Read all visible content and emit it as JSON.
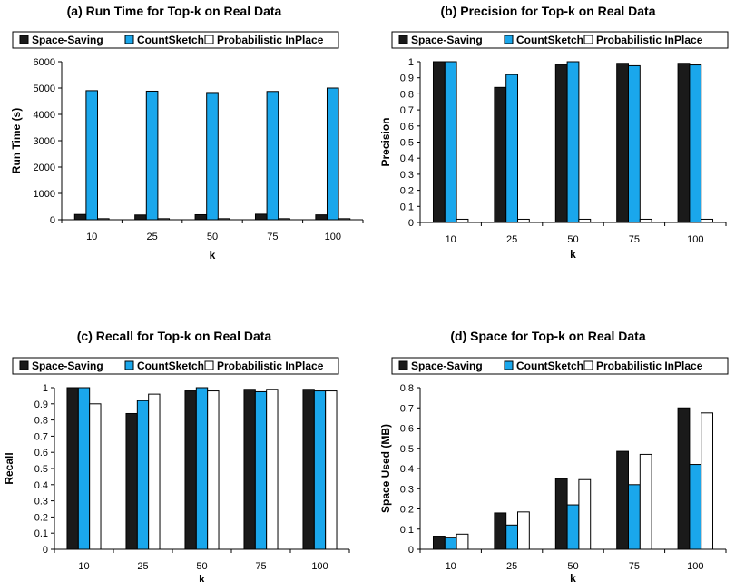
{
  "legend_labels": [
    "Space-Saving",
    "CountSketch",
    "Probabilistic InPlace"
  ],
  "colors": {
    "Space-Saving": "#1a1a1a",
    "CountSketch": "#1aa7ec",
    "Probabilistic InPlace": "#ffffff",
    "axis": "#000000"
  },
  "chart_data": [
    {
      "type": "bar",
      "title": "(a) Run Time for Top-k on Real Data",
      "xlabel": "k",
      "ylabel": "Run Time (s)",
      "categories": [
        "10",
        "25",
        "50",
        "75",
        "100"
      ],
      "ylim": [
        0,
        6000
      ],
      "yticks": [
        "0",
        "1000",
        "2000",
        "3000",
        "4000",
        "5000",
        "6000"
      ],
      "yticks_values": [
        0,
        1000,
        2000,
        3000,
        4000,
        5000,
        6000
      ],
      "legend": "top",
      "grid": false,
      "series": [
        {
          "name": "Space-Saving",
          "values": [
            200,
            180,
            190,
            210,
            185
          ]
        },
        {
          "name": "CountSketch",
          "values": [
            4900,
            4880,
            4830,
            4870,
            5000
          ]
        },
        {
          "name": "Probabilistic InPlace",
          "values": [
            40,
            40,
            40,
            40,
            40
          ]
        }
      ]
    },
    {
      "type": "bar",
      "title": "(b) Precision for Top-k on Real Data",
      "xlabel": "k",
      "ylabel": "Precision",
      "categories": [
        "10",
        "25",
        "50",
        "75",
        "100"
      ],
      "ylim": [
        0,
        1
      ],
      "yticks": [
        "0",
        "0.1",
        "0.2",
        "0.3",
        "0.4",
        "0.5",
        "0.6",
        "0.7",
        "0.8",
        "0.9",
        "1"
      ],
      "yticks_values": [
        0,
        0.1,
        0.2,
        0.3,
        0.4,
        0.5,
        0.6,
        0.7,
        0.8,
        0.9,
        1
      ],
      "legend": "top",
      "grid": false,
      "series": [
        {
          "name": "Space-Saving",
          "values": [
            1.0,
            0.84,
            0.98,
            0.99,
            0.99
          ]
        },
        {
          "name": "CountSketch",
          "values": [
            1.0,
            0.92,
            1.0,
            0.975,
            0.98
          ]
        },
        {
          "name": "Probabilistic InPlace",
          "values": [
            0.02,
            0.02,
            0.02,
            0.02,
            0.02
          ]
        }
      ]
    },
    {
      "type": "bar",
      "title": "(c) Recall for Top-k on Real Data",
      "xlabel": "k",
      "ylabel": "Recall",
      "categories": [
        "10",
        "25",
        "50",
        "75",
        "100"
      ],
      "ylim": [
        0,
        1
      ],
      "yticks": [
        "0",
        "0.1",
        "0.2",
        "0.3",
        "0.4",
        "0.5",
        "0.6",
        "0.7",
        "0.8",
        "0.9",
        "1"
      ],
      "yticks_values": [
        0,
        0.1,
        0.2,
        0.3,
        0.4,
        0.5,
        0.6,
        0.7,
        0.8,
        0.9,
        1
      ],
      "legend": "top",
      "grid": false,
      "series": [
        {
          "name": "Space-Saving",
          "values": [
            1.0,
            0.84,
            0.98,
            0.99,
            0.99
          ]
        },
        {
          "name": "CountSketch",
          "values": [
            1.0,
            0.92,
            1.0,
            0.975,
            0.98
          ]
        },
        {
          "name": "Probabilistic InPlace",
          "values": [
            0.9,
            0.96,
            0.98,
            0.99,
            0.98
          ]
        }
      ]
    },
    {
      "type": "bar",
      "title": "(d) Space for Top-k on Real Data",
      "xlabel": "k",
      "ylabel": "Space Used (MB)",
      "categories": [
        "10",
        "25",
        "50",
        "75",
        "100"
      ],
      "ylim": [
        0,
        0.8
      ],
      "yticks": [
        "0",
        "0.1",
        "0.2",
        "0.3",
        "0.4",
        "0.5",
        "0.6",
        "0.7",
        "0.8"
      ],
      "yticks_values": [
        0,
        0.1,
        0.2,
        0.3,
        0.4,
        0.5,
        0.6,
        0.7,
        0.8
      ],
      "legend": "top",
      "grid": false,
      "series": [
        {
          "name": "Space-Saving",
          "values": [
            0.065,
            0.18,
            0.35,
            0.485,
            0.7
          ]
        },
        {
          "name": "CountSketch",
          "values": [
            0.06,
            0.12,
            0.22,
            0.32,
            0.42
          ]
        },
        {
          "name": "Probabilistic InPlace",
          "values": [
            0.075,
            0.185,
            0.345,
            0.47,
            0.675
          ]
        }
      ]
    }
  ]
}
